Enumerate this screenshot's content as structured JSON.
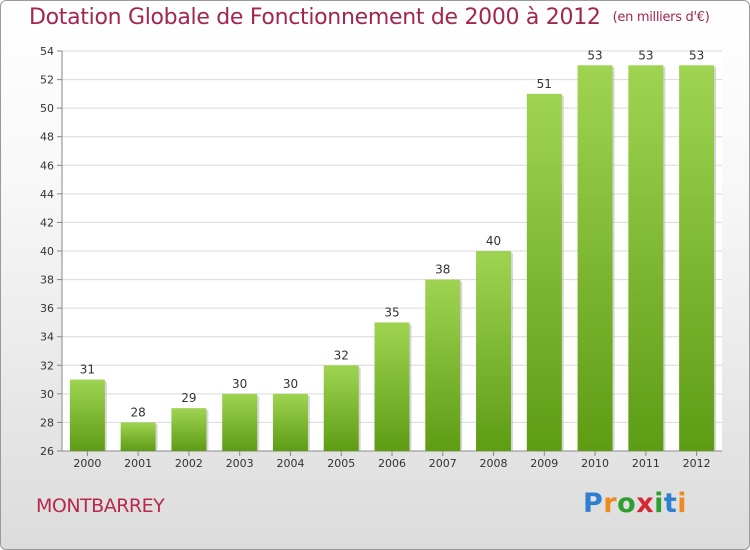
{
  "chart_data": {
    "type": "bar",
    "title": "Dotation Globale de Fonctionnement de 2000 à 2012",
    "unit": "(en milliers d'€)",
    "categories": [
      "2000",
      "2001",
      "2002",
      "2003",
      "2004",
      "2005",
      "2006",
      "2007",
      "2008",
      "2009",
      "2010",
      "2011",
      "2012"
    ],
    "values": [
      31,
      28,
      29,
      30,
      30,
      32,
      35,
      38,
      40,
      51,
      53,
      53,
      53
    ],
    "ylim": [
      26,
      54
    ],
    "yticks": [
      26,
      28,
      30,
      32,
      34,
      36,
      38,
      40,
      42,
      44,
      46,
      48,
      50,
      52,
      54
    ],
    "grid": true,
    "bar_color_top": "#9fd452",
    "bar_color_bottom": "#5e9c14"
  },
  "commune": "MONTBARREY",
  "logo": {
    "letters": [
      "P",
      "r",
      "o",
      "x",
      "i",
      "t",
      "i"
    ],
    "colors": [
      "#2f7fd1",
      "#f08a1c",
      "#2f9e2f",
      "#d6262f",
      "#2f9e2f",
      "#2f7fd1",
      "#f08a1c"
    ]
  },
  "colors": {
    "title": "#a3264f",
    "grid": "#d9d9d9",
    "axis": "#888888"
  }
}
